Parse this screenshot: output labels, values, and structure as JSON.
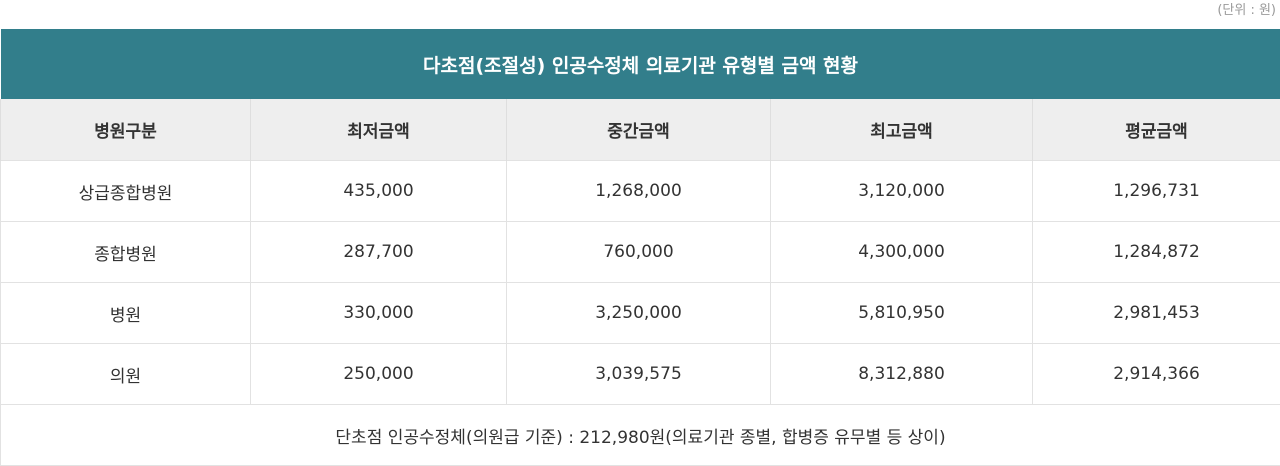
{
  "unit_note": "(단위 : 원)",
  "table": {
    "title": "다초점(조절성) 인공수정체 의료기관 유형별 금액 현황",
    "headers": [
      "병원구분",
      "최저금액",
      "중간금액",
      "최고금액",
      "평균금액"
    ],
    "rows": [
      [
        "상급종합병원",
        "435,000",
        "1,268,000",
        "3,120,000",
        "1,296,731"
      ],
      [
        "종합병원",
        "287,700",
        "760,000",
        "4,300,000",
        "1,284,872"
      ],
      [
        "병원",
        "330,000",
        "3,250,000",
        "5,810,950",
        "2,981,453"
      ],
      [
        "의원",
        "250,000",
        "3,039,575",
        "8,312,880",
        "2,914,366"
      ]
    ],
    "footnote": "단초점 인공수정체(의원급 기준) : 212,980원(의료기관 종별, 합병증 유무별 등 상이)"
  },
  "colors": {
    "title_bg": "#327e8b",
    "header_bg": "#eeeeee",
    "border": "#e2e2e2",
    "unit_text": "#9a9a9a"
  }
}
